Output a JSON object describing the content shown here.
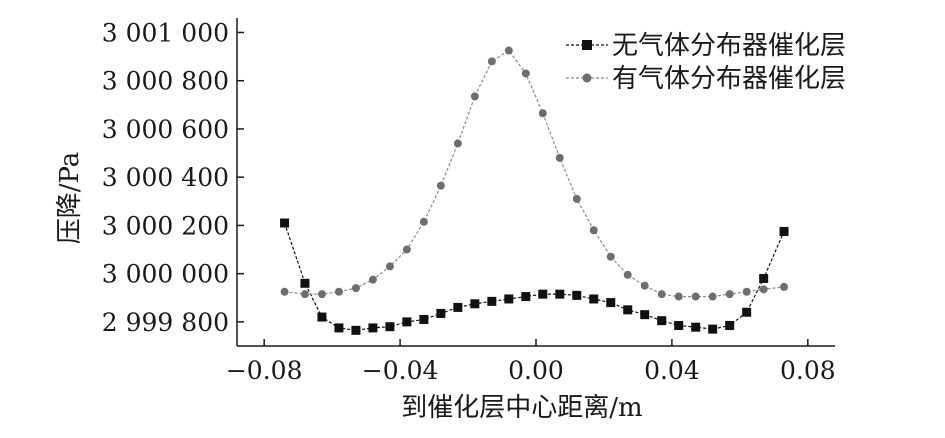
{
  "chart_data": {
    "type": "line",
    "title": "",
    "xlabel": "到催化层中心距离/m",
    "ylabel": "压降/Pa",
    "xlim": [
      -0.088,
      0.088
    ],
    "ylim": [
      2999700,
      3001060
    ],
    "xticks": [
      -0.08,
      -0.04,
      0.0,
      0.04,
      0.08
    ],
    "xtick_labels": [
      "−0.08",
      "−0.04",
      "0.00",
      "0.04",
      "0.08"
    ],
    "yticks": [
      2999800,
      3000000,
      3000200,
      3000400,
      3000600,
      3000800,
      3001000
    ],
    "ytick_labels": [
      "2 999 800",
      "3 000 000",
      "3 000 200",
      "3 000 400",
      "3 000 600",
      "3 000 800",
      "3 001 000"
    ],
    "grid": false,
    "legend_position": "top-right",
    "series": [
      {
        "name": "无气体分布器催化层",
        "marker": "square",
        "color": "#111111",
        "x": [
          -0.074,
          -0.068,
          -0.063,
          -0.058,
          -0.053,
          -0.048,
          -0.043,
          -0.038,
          -0.033,
          -0.028,
          -0.023,
          -0.018,
          -0.013,
          -0.008,
          -0.003,
          0.002,
          0.007,
          0.012,
          0.017,
          0.022,
          0.027,
          0.032,
          0.037,
          0.042,
          0.047,
          0.052,
          0.057,
          0.062,
          0.067,
          0.073
        ],
        "values": [
          3000210,
          2999960,
          2999820,
          2999775,
          2999765,
          2999775,
          2999780,
          2999800,
          2999810,
          2999835,
          2999860,
          2999875,
          2999885,
          2999895,
          2999905,
          2999915,
          2999915,
          2999910,
          2999895,
          2999880,
          2999850,
          2999830,
          2999805,
          2999785,
          2999778,
          2999770,
          2999785,
          2999840,
          2999980,
          3000175
        ]
      },
      {
        "name": "有气体分布器催化层",
        "marker": "dot",
        "color": "#6e6e6e",
        "x": [
          -0.074,
          -0.068,
          -0.063,
          -0.058,
          -0.053,
          -0.048,
          -0.043,
          -0.038,
          -0.033,
          -0.028,
          -0.023,
          -0.018,
          -0.013,
          -0.008,
          -0.003,
          0.002,
          0.007,
          0.012,
          0.017,
          0.022,
          0.027,
          0.032,
          0.037,
          0.042,
          0.047,
          0.052,
          0.057,
          0.062,
          0.067,
          0.073
        ],
        "values": [
          2999925,
          2999915,
          2999915,
          2999925,
          2999940,
          2999975,
          3000030,
          3000100,
          3000215,
          3000365,
          3000540,
          3000735,
          3000880,
          3000925,
          3000830,
          3000665,
          3000480,
          3000310,
          3000180,
          3000070,
          2999995,
          2999950,
          2999915,
          2999905,
          2999905,
          2999905,
          2999915,
          2999925,
          2999935,
          2999945
        ]
      }
    ]
  }
}
